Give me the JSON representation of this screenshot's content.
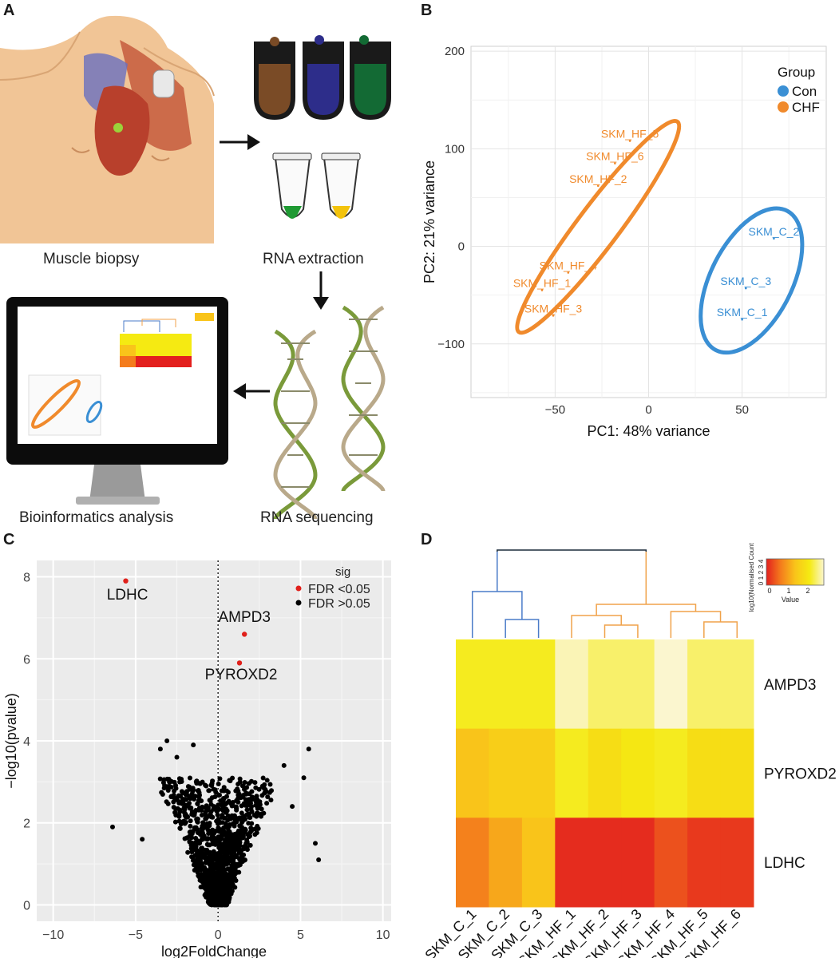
{
  "panels": {
    "a": {
      "letter": "A",
      "muscle_biopsy": "Muscle biopsy",
      "rna_extraction": "RNA extraction",
      "rna_sequencing": "RNA sequencing",
      "bioinformatics": "Bioinformatics analysis"
    },
    "b": {
      "letter": "B"
    },
    "c": {
      "letter": "C"
    },
    "d": {
      "letter": "D"
    }
  },
  "chart_data": [
    {
      "id": "pca",
      "type": "scatter",
      "title": "",
      "xlabel": "PC1: 48% variance",
      "ylabel": "PC2: 21% variance",
      "xlim": [
        -95,
        95
      ],
      "ylim": [
        -155,
        205
      ],
      "xticks": [
        -50,
        0,
        50
      ],
      "yticks": [
        -100,
        0,
        100,
        200
      ],
      "legend_title": "Group",
      "series": [
        {
          "name": "Con",
          "color": "#3a8fd4",
          "points": [
            {
              "label": "SKM_C_2",
              "x": 67,
              "y": 8
            },
            {
              "label": "SKM_C_3",
              "x": 52,
              "y": -43
            },
            {
              "label": "SKM_C_1",
              "x": 50,
              "y": -75
            }
          ]
        },
        {
          "name": "CHF",
          "color": "#f08a2c",
          "points": [
            {
              "label": "SKM_HF_5",
              "x": -10,
              "y": 108
            },
            {
              "label": "SKM_HF_6",
              "x": -18,
              "y": 85
            },
            {
              "label": "SKM_HF_2",
              "x": -27,
              "y": 62
            },
            {
              "label": "SKM_HF_4",
              "x": -43,
              "y": -27
            },
            {
              "label": "SKM_HF_1",
              "x": -57,
              "y": -45
            },
            {
              "label": "SKM_HF_3",
              "x": -51,
              "y": -71
            }
          ]
        }
      ]
    },
    {
      "id": "volcano",
      "type": "scatter",
      "title": "",
      "xlabel": "log2FoldChange",
      "ylabel": "-log10(pvalue)",
      "xlim": [
        -11,
        10.5
      ],
      "ylim": [
        -0.4,
        8.4
      ],
      "xticks": [
        -10,
        -5,
        0,
        5,
        10
      ],
      "yticks": [
        0,
        2,
        4,
        6,
        8
      ],
      "legend_title": "sig",
      "legend": [
        {
          "label": "FDR <0.05",
          "color": "#e0201b"
        },
        {
          "label": "FDR >0.05",
          "color": "#000000"
        }
      ],
      "significant": [
        {
          "label": "LDHC",
          "x": -5.6,
          "y": 7.9
        },
        {
          "label": "AMPD3",
          "x": 1.6,
          "y": 6.6
        },
        {
          "label": "PYROXD2",
          "x": 1.3,
          "y": 5.9
        }
      ],
      "outliers": [
        {
          "x": -6.4,
          "y": 1.9
        },
        {
          "x": -3.1,
          "y": 4.0
        },
        {
          "x": -2.5,
          "y": 3.6
        },
        {
          "x": -3.5,
          "y": 3.8
        },
        {
          "x": -1.5,
          "y": 3.9
        },
        {
          "x": 5.5,
          "y": 3.8
        },
        {
          "x": 5.2,
          "y": 3.1
        },
        {
          "x": 5.9,
          "y": 1.5
        },
        {
          "x": 6.1,
          "y": 1.1
        },
        {
          "x": 4.5,
          "y": 2.4
        },
        {
          "x": -4.6,
          "y": 1.6
        },
        {
          "x": 4.0,
          "y": 3.4
        }
      ]
    },
    {
      "id": "heatmap",
      "type": "heatmap",
      "columns": [
        "SKM_C_1",
        "SKM_C_2",
        "SKM_C_3",
        "SKM_HF_1",
        "SKM_HF_2",
        "SKM_HF_3",
        "SKM_HF_4",
        "SKM_HF_5",
        "SKM_HF_6"
      ],
      "rows": [
        "AMPD3",
        "PYROXD2",
        "LDHC"
      ],
      "values": [
        [
          2.3,
          2.3,
          2.3,
          2.9,
          2.6,
          2.6,
          3.0,
          2.6,
          2.6
        ],
        [
          1.5,
          1.7,
          1.7,
          2.3,
          2.0,
          2.2,
          2.3,
          2.0,
          2.0
        ],
        [
          0.8,
          1.2,
          1.5,
          0.1,
          0.1,
          0.1,
          0.4,
          0.2,
          0.2
        ]
      ],
      "legend_title": "log10(Normalised Count)",
      "legend_xlabel": "Value",
      "legend_ticks": [
        0,
        1,
        2
      ],
      "legend_yticks": [
        0,
        1,
        2,
        3,
        4
      ],
      "colormap": [
        "#e3201e",
        "#f47c1c",
        "#f9c41a",
        "#f5ea12",
        "#fbf6cf"
      ],
      "dendrogram_colors": {
        "con": "#4a7bc8",
        "hf": "#f0a24a",
        "root": "#1a2a3a"
      }
    }
  ]
}
